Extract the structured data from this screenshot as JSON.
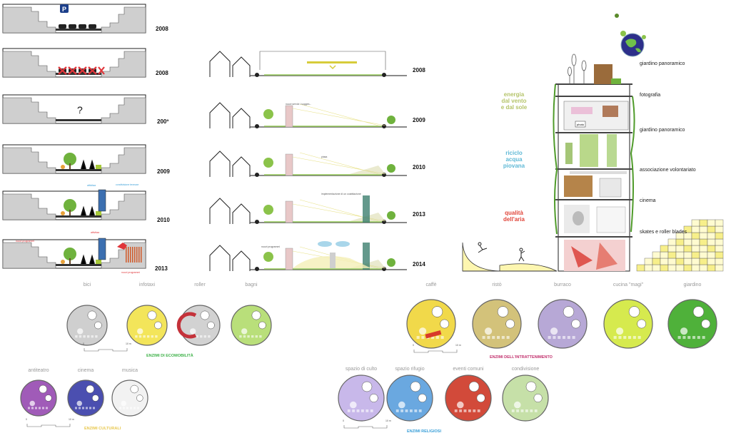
{
  "left_column": {
    "years": [
      "2008",
      "2008",
      "200º",
      "2009",
      "2010",
      "2013"
    ],
    "question_mark": "?",
    "parking_sign": "P",
    "small_labels": [
      "attivitaa",
      "condivisione tevezze",
      "attivitaa",
      "nuovi programmi",
      "nuovi programmi"
    ]
  },
  "middle_column": {
    "years": [
      "2008",
      "2009",
      "2010",
      "2013",
      "2014"
    ],
    "notes": [
      "nuovi servizi / sugges...",
      "piasa",
      "implementazione di un coabitazione",
      "nuovi programmi"
    ]
  },
  "building": {
    "strategies": [
      {
        "text": "energia\ndal vento\ne dal sole",
        "color": "#b5c46a"
      },
      {
        "text": "riciclo\nacqua\npiovana",
        "color": "#5fb9d6"
      },
      {
        "text": "qualità\ndell'aria",
        "color": "#e0453a"
      }
    ],
    "floors": [
      "giardino panoramico",
      "fotografia",
      "giardino panoramico",
      "associazione volontariato",
      "cinema",
      "skates e roller blades"
    ],
    "photo_tag": "photo"
  },
  "enzymes": {
    "mobility": {
      "label": "ENZIMI DI ECOMOBILITÀ",
      "color": "#3fb24a",
      "items": [
        "bici",
        "infotaxi",
        "roller",
        "bagni"
      ]
    },
    "entertainment": {
      "label": "ENZIMI DELL'INTRATTENIMENTO",
      "color": "#c2306d",
      "items": [
        "caffè",
        "ristò",
        "burraco",
        "cucina \"magi\"",
        "giardino"
      ]
    },
    "cultural": {
      "label": "ENZIMI CULTURALI",
      "color": "#e8c84e",
      "items": [
        "antiteatro",
        "cinema",
        "musica"
      ]
    },
    "religious": {
      "label": "ENZIMI RELIGIOSI",
      "color": "#3a9fd8",
      "items": [
        "spazio di culto",
        "spazio rifugio",
        "eventi comuni",
        "condivisione"
      ]
    },
    "scale_labels": [
      "0",
      "10 m"
    ]
  }
}
